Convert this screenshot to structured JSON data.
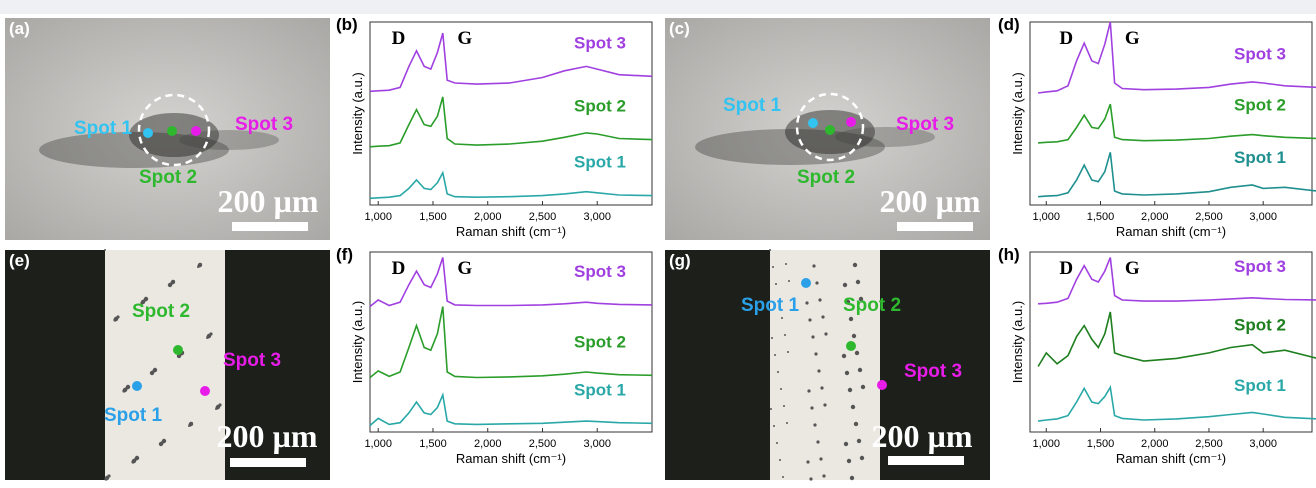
{
  "panels": [
    {
      "label": "(a)",
      "scale": "200 µm",
      "spots": [
        {
          "label": "Spot 1",
          "color": "#33c3f0"
        },
        {
          "label": "Spot 2",
          "color": "#2eb82e"
        },
        {
          "label": "Spot 3",
          "color": "#e81ce8"
        }
      ]
    },
    {
      "label": "(c)",
      "scale": "200 µm",
      "spots": [
        {
          "label": "Spot 1",
          "color": "#33c3f0"
        },
        {
          "label": "Spot 2",
          "color": "#2eb82e"
        },
        {
          "label": "Spot 3",
          "color": "#e81ce8"
        }
      ]
    },
    {
      "label": "(e)",
      "scale": "200 µm",
      "spots": [
        {
          "label": "Spot 1",
          "color": "#2aa0e8"
        },
        {
          "label": "Spot 2",
          "color": "#2eb82e"
        },
        {
          "label": "Spot 3",
          "color": "#e81ce8"
        }
      ]
    },
    {
      "label": "(g)",
      "scale": "200 µm",
      "spots": [
        {
          "label": "Spot 1",
          "color": "#2aa0e8"
        },
        {
          "label": "Spot 2",
          "color": "#2eb82e"
        },
        {
          "label": "Spot 3",
          "color": "#e81ce8"
        }
      ]
    }
  ],
  "chart_data": [
    {
      "type": "line",
      "title": "(b)",
      "annotations": [
        "D",
        "G"
      ],
      "xlabel": "Raman shift (cm⁻¹)",
      "ylabel": "Intensity (a.u.)",
      "x": [
        925,
        1000,
        1100,
        1200,
        1280,
        1350,
        1420,
        1480,
        1540,
        1590,
        1630,
        1700,
        1900,
        2200,
        2500,
        2700,
        2900,
        3000,
        3200,
        3500
      ],
      "xlim": [
        925,
        3500
      ],
      "ylim": [
        0,
        3.3
      ],
      "xticks": [
        {
          "value": 1000,
          "label": "1,000"
        },
        {
          "value": 1500,
          "label": "1,500"
        },
        {
          "value": 2000,
          "label": "2,000"
        },
        {
          "value": 2500,
          "label": "2,500"
        },
        {
          "value": 3000,
          "label": "3,000"
        }
      ],
      "series": [
        {
          "name": "Spot 1",
          "color": "#2aa8a8",
          "values": [
            0.12,
            0.13,
            0.14,
            0.17,
            0.3,
            0.45,
            0.3,
            0.28,
            0.4,
            0.58,
            0.2,
            0.15,
            0.14,
            0.15,
            0.17,
            0.2,
            0.24,
            0.22,
            0.18,
            0.17
          ]
        },
        {
          "name": "Spot 2",
          "color": "#2a9d2a",
          "values": [
            1.05,
            1.06,
            1.07,
            1.12,
            1.45,
            1.72,
            1.45,
            1.42,
            1.6,
            1.95,
            1.2,
            1.1,
            1.08,
            1.1,
            1.15,
            1.22,
            1.3,
            1.28,
            1.2,
            1.18
          ]
        },
        {
          "name": "Spot 3",
          "color": "#a040e0",
          "values": [
            2.05,
            2.06,
            2.07,
            2.12,
            2.5,
            2.78,
            2.5,
            2.45,
            2.75,
            3.1,
            2.25,
            2.2,
            2.18,
            2.2,
            2.3,
            2.42,
            2.5,
            2.45,
            2.35,
            2.32
          ]
        }
      ]
    },
    {
      "type": "line",
      "title": "(d)",
      "annotations": [
        "D",
        "G"
      ],
      "xlabel": "Raman shift (cm⁻¹)",
      "ylabel": "Intensity (a.u.)",
      "x": [
        925,
        1000,
        1100,
        1200,
        1280,
        1350,
        1420,
        1480,
        1540,
        1590,
        1630,
        1700,
        1900,
        2200,
        2500,
        2700,
        2900,
        3000,
        3200,
        3500
      ],
      "xlim": [
        850,
        3450
      ],
      "ylim": [
        0,
        3.3
      ],
      "xticks": [
        {
          "value": 1000,
          "label": "1,000"
        },
        {
          "value": 1500,
          "label": "1,500"
        },
        {
          "value": 2000,
          "label": "2,000"
        },
        {
          "value": 2500,
          "label": "2,500"
        },
        {
          "value": 3000,
          "label": "3,000"
        }
      ],
      "series": [
        {
          "name": "Spot 1",
          "color": "#1f8f8f",
          "values": [
            0.15,
            0.16,
            0.17,
            0.22,
            0.45,
            0.72,
            0.45,
            0.42,
            0.6,
            0.95,
            0.25,
            0.2,
            0.18,
            0.2,
            0.24,
            0.32,
            0.36,
            0.3,
            0.32,
            0.25
          ]
        },
        {
          "name": "Spot 2",
          "color": "#2a9d2a",
          "values": [
            1.12,
            1.13,
            1.14,
            1.18,
            1.4,
            1.62,
            1.4,
            1.38,
            1.55,
            1.82,
            1.22,
            1.18,
            1.16,
            1.17,
            1.2,
            1.24,
            1.27,
            1.25,
            1.22,
            1.2
          ]
        },
        {
          "name": "Spot 3",
          "color": "#a040e0",
          "values": [
            2.02,
            2.04,
            2.06,
            2.15,
            2.6,
            2.92,
            2.6,
            2.55,
            2.9,
            3.3,
            2.2,
            2.1,
            2.08,
            2.09,
            2.12,
            2.18,
            2.22,
            2.2,
            2.15,
            2.12
          ]
        }
      ]
    },
    {
      "type": "line",
      "title": "(f)",
      "annotations": [
        "D",
        "G"
      ],
      "xlabel": "Raman shift (cm⁻¹)",
      "ylabel": "Intensity (a.u.)",
      "x": [
        925,
        1000,
        1100,
        1200,
        1280,
        1350,
        1420,
        1480,
        1540,
        1590,
        1630,
        1700,
        1900,
        2200,
        2500,
        2700,
        2900,
        3000,
        3200,
        3500
      ],
      "xlim": [
        925,
        3500
      ],
      "ylim": [
        0,
        3.3
      ],
      "xticks": [
        {
          "value": 1000,
          "label": "1,000"
        },
        {
          "value": 1500,
          "label": "1,500"
        },
        {
          "value": 2000,
          "label": "2,000"
        },
        {
          "value": 2500,
          "label": "2,500"
        },
        {
          "value": 3000,
          "label": "3,000"
        }
      ],
      "series": [
        {
          "name": "Spot 1",
          "color": "#2aa8a8",
          "values": [
            0.12,
            0.25,
            0.14,
            0.17,
            0.35,
            0.55,
            0.35,
            0.32,
            0.45,
            0.68,
            0.2,
            0.15,
            0.14,
            0.15,
            0.16,
            0.18,
            0.2,
            0.19,
            0.17,
            0.16
          ]
        },
        {
          "name": "Spot 2",
          "color": "#2a9d2a",
          "values": [
            1.0,
            1.12,
            1.02,
            1.1,
            1.55,
            1.95,
            1.55,
            1.5,
            1.8,
            2.3,
            1.1,
            1.02,
            1.0,
            1.01,
            1.03,
            1.06,
            1.1,
            1.08,
            1.05,
            1.04
          ]
        },
        {
          "name": "Spot 3",
          "color": "#a040e0",
          "values": [
            2.3,
            2.42,
            2.32,
            2.38,
            2.7,
            2.95,
            2.7,
            2.65,
            2.9,
            3.2,
            2.4,
            2.33,
            2.32,
            2.32,
            2.33,
            2.35,
            2.38,
            2.36,
            2.34,
            2.33
          ]
        }
      ]
    },
    {
      "type": "line",
      "title": "(h)",
      "annotations": [
        "D",
        "G"
      ],
      "xlabel": "Raman shift (cm⁻¹)",
      "ylabel": "Intensity (a.u.)",
      "x": [
        925,
        1000,
        1100,
        1200,
        1280,
        1350,
        1420,
        1480,
        1540,
        1590,
        1630,
        1700,
        1900,
        2200,
        2500,
        2700,
        2900,
        3000,
        3200,
        3500
      ],
      "xlim": [
        850,
        3450
      ],
      "ylim": [
        0,
        3.3
      ],
      "xticks": [
        {
          "value": 1000,
          "label": "1,000"
        },
        {
          "value": 1500,
          "label": "1,500"
        },
        {
          "value": 2000,
          "label": "2,000"
        },
        {
          "value": 2500,
          "label": "2,500"
        },
        {
          "value": 3000,
          "label": "3,000"
        }
      ],
      "series": [
        {
          "name": "Spot 1",
          "color": "#2aa8a8",
          "values": [
            0.2,
            0.22,
            0.24,
            0.3,
            0.55,
            0.8,
            0.55,
            0.52,
            0.65,
            0.82,
            0.3,
            0.25,
            0.22,
            0.24,
            0.28,
            0.32,
            0.36,
            0.33,
            0.27,
            0.24
          ]
        },
        {
          "name": "Spot 2",
          "color": "#1e7f1e",
          "values": [
            1.2,
            1.45,
            1.25,
            1.4,
            1.75,
            1.95,
            1.7,
            1.55,
            1.8,
            2.2,
            1.45,
            1.4,
            1.3,
            1.35,
            1.45,
            1.55,
            1.6,
            1.45,
            1.5,
            1.35
          ]
        },
        {
          "name": "Spot 3",
          "color": "#a040e0",
          "values": [
            2.35,
            2.36,
            2.38,
            2.45,
            2.8,
            3.05,
            2.8,
            2.75,
            2.95,
            3.2,
            2.5,
            2.42,
            2.4,
            2.4,
            2.42,
            2.44,
            2.46,
            2.45,
            2.43,
            2.42
          ]
        }
      ]
    }
  ]
}
